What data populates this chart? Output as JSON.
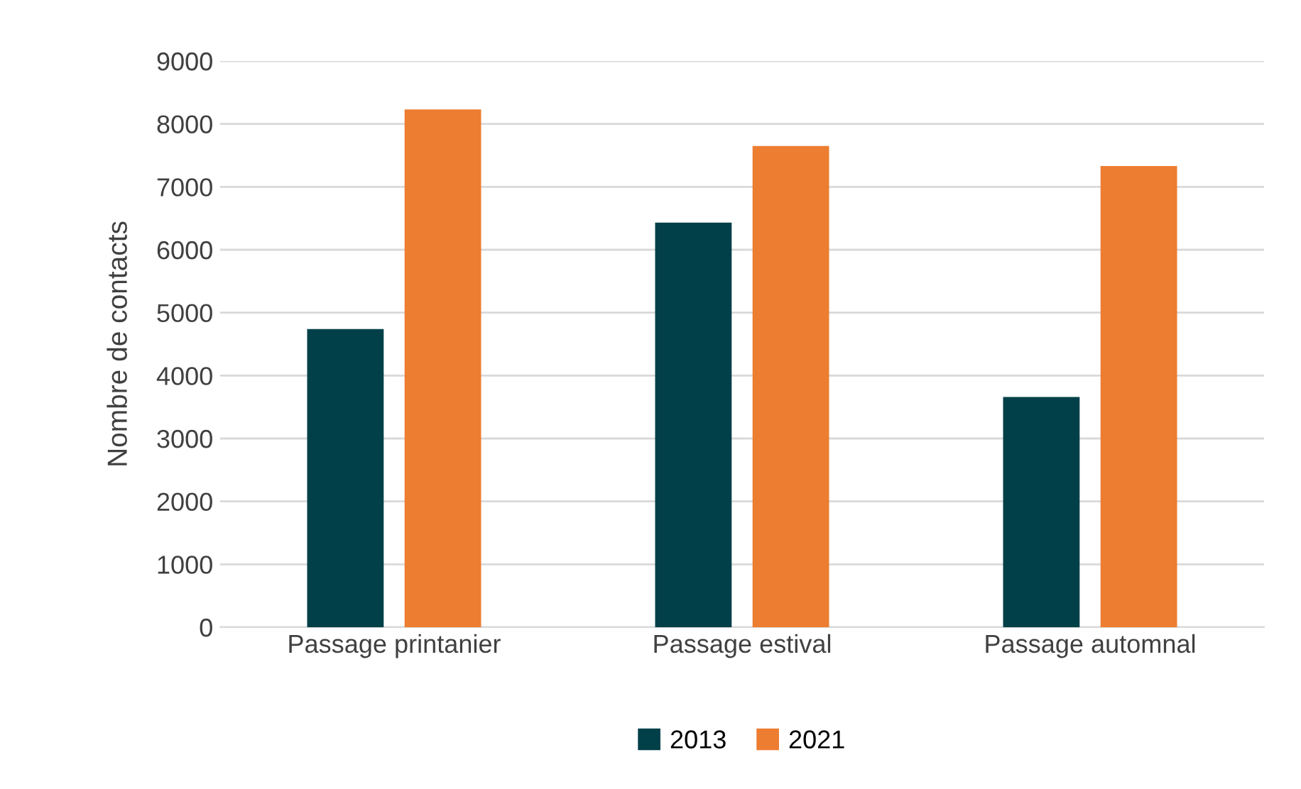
{
  "chart_data": {
    "type": "bar",
    "ylabel": "Nombre de contacts",
    "categories": [
      "Passage printanier",
      "Passage estival",
      "Passage automnal"
    ],
    "series": [
      {
        "name": "2013",
        "color": "#014049",
        "values": [
          4740,
          6430,
          3660
        ]
      },
      {
        "name": "2021",
        "color": "#ed7d31",
        "values": [
          8230,
          7650,
          7330
        ]
      }
    ],
    "ylim": [
      0,
      9000
    ],
    "yticks": [
      0,
      1000,
      2000,
      3000,
      4000,
      5000,
      6000,
      7000,
      8000,
      9000
    ],
    "grid": "y",
    "legend": "bottom"
  }
}
